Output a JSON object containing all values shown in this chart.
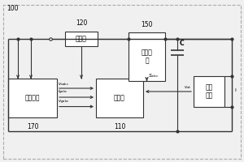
{
  "bg_color": "#f0f0f0",
  "box_color": "#ffffff",
  "box_edge": "#333333",
  "line_color": "#333333",
  "label_100": "100",
  "label_120": "120",
  "label_150": "150",
  "label_170": "170",
  "label_110": "110",
  "box_filter": "滤波器",
  "box_converter": "变流单\n元",
  "box_controller": "控制器",
  "box_ac_sample": "交流采样",
  "box_dc_sample": "直流\n采样",
  "label_S_abc": "$S_{abc}$",
  "label_v_sabc": "$v_{sabc}$",
  "label_i_gabc": "$i_{gabc}$",
  "label_v_gabc": "$v_{gabc}$",
  "label_v_dc": "$v_{dc}$",
  "label_C": "C",
  "label_Idc": "I",
  "font_size_box": 5.5,
  "font_size_label": 4.5,
  "font_size_num": 5.5,
  "font_size_sig": 4.0
}
